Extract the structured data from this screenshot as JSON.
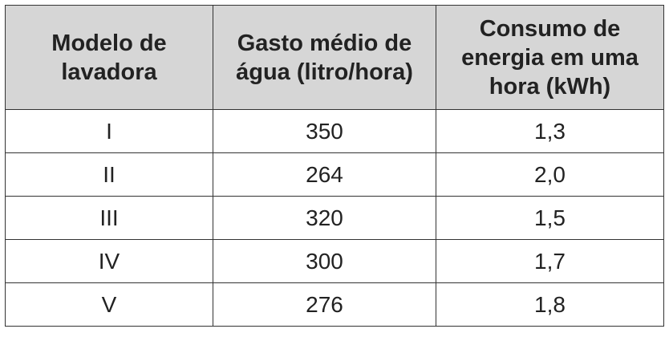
{
  "table": {
    "headers": [
      [
        "Modelo de",
        "lavadora"
      ],
      [
        "Gasto médio de",
        "água (litro/hora)"
      ],
      [
        "Consumo de",
        "energia em uma",
        "hora (kWh)"
      ]
    ],
    "rows": [
      [
        "I",
        "350",
        "1,3"
      ],
      [
        "II",
        "264",
        "2,0"
      ],
      [
        "III",
        "320",
        "1,5"
      ],
      [
        "IV",
        "300",
        "1,7"
      ],
      [
        "V",
        "276",
        "1,8"
      ]
    ]
  }
}
